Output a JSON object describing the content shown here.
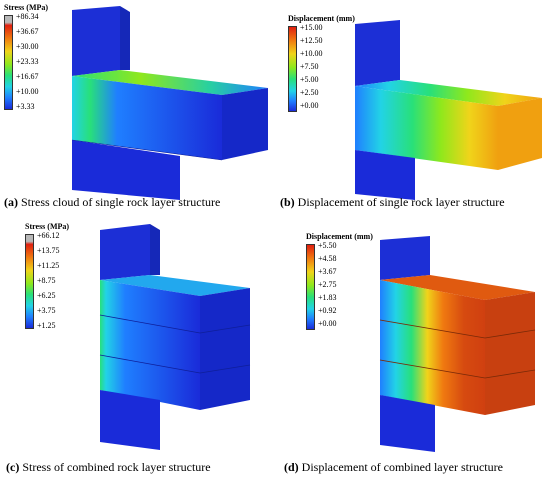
{
  "panels": [
    {
      "id": "a",
      "legend_title": "Stress (MPa)",
      "legend_labels": [
        "+86.34",
        "+36.67",
        "+30.00",
        "+23.33",
        "+16.67",
        "+10.00",
        "+3.33"
      ],
      "caption_letter": "(a)",
      "caption_text": " Stress cloud of single rock layer structure"
    },
    {
      "id": "b",
      "legend_title": "Displacement (mm)",
      "legend_labels": [
        "+15.00",
        "+12.50",
        "+10.00",
        "+7.50",
        "+5.00",
        "+2.50",
        "+0.00"
      ],
      "caption_letter": "(b)",
      "caption_text": " Displacement of single rock layer structure"
    },
    {
      "id": "c",
      "legend_title": "Stress (MPa)",
      "legend_labels": [
        "+66.12",
        "+13.75",
        "+11.25",
        "+8.75",
        "+6.25",
        "+3.75",
        "+1.25"
      ],
      "caption_letter": "(c)",
      "caption_text": " Stress of combined rock layer structure"
    },
    {
      "id": "d",
      "legend_title": "Displacement (mm)",
      "legend_labels": [
        "+5.50",
        "+4.58",
        "+3.67",
        "+2.75",
        "+1.83",
        "+0.92",
        "+0.00"
      ],
      "caption_letter": "(d)",
      "caption_text": " Displacement of combined layer structure"
    }
  ],
  "colors": {
    "contour_scale": [
      "#1a2bd9",
      "#1f7fff",
      "#22d3e6",
      "#28e07a",
      "#8fe81c",
      "#f0d41a",
      "#f07a10",
      "#e02010",
      "#b8b8b8"
    ],
    "model_base": "#1a2bd9"
  }
}
